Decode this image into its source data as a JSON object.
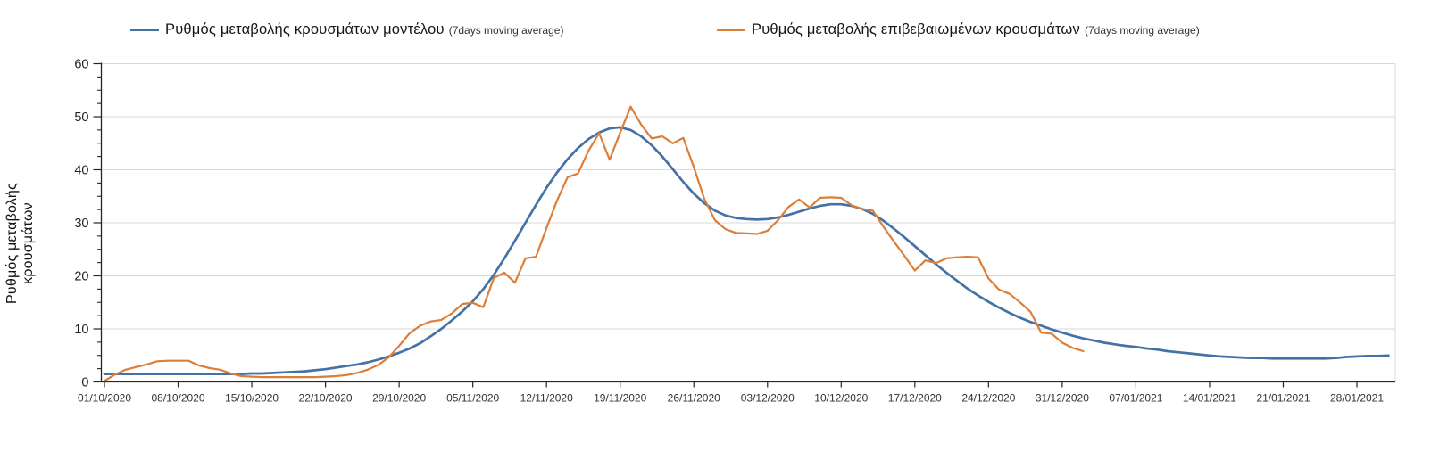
{
  "chart_data": {
    "type": "line",
    "title": "",
    "xlabel": "",
    "ylabel": "Ρυθμός μεταβολής κρουσμάτων",
    "ylim": [
      0,
      60
    ],
    "y_major_ticks": [
      0,
      10,
      20,
      30,
      40,
      50,
      60
    ],
    "y_minor_step": 2.5,
    "grid": "horizontal-major-light-gray",
    "legend_position": "top",
    "x_tick_labels": [
      "01/10/2020",
      "08/10/2020",
      "15/10/2020",
      "22/10/2020",
      "29/10/2020",
      "05/11/2020",
      "12/11/2020",
      "19/11/2020",
      "26/11/2020",
      "03/12/2020",
      "10/12/2020",
      "17/12/2020",
      "24/12/2020",
      "31/12/2020",
      "07/01/2021",
      "14/01/2021",
      "21/01/2021",
      "28/01/2021"
    ],
    "x_tick_day_index": [
      0,
      7,
      14,
      21,
      28,
      35,
      42,
      49,
      56,
      63,
      70,
      77,
      84,
      91,
      98,
      105,
      112,
      119
    ],
    "x_unit": "days since 01/10/2020",
    "series": [
      {
        "name": "Ρυθμός μεταβολής κρουσμάτων μοντέλου",
        "name_suffix": "(7days moving average)",
        "color": "#4472a6",
        "line_width": 2.7,
        "start_day": 0,
        "values": [
          1.5,
          1.5,
          1.5,
          1.5,
          1.5,
          1.5,
          1.5,
          1.5,
          1.5,
          1.5,
          1.5,
          1.5,
          1.5,
          1.5,
          1.6,
          1.6,
          1.7,
          1.8,
          1.9,
          2.0,
          2.2,
          2.4,
          2.7,
          3.0,
          3.3,
          3.7,
          4.2,
          4.8,
          5.5,
          6.3,
          7.3,
          8.6,
          10.0,
          11.6,
          13.3,
          15.2,
          17.5,
          20.2,
          23.3,
          26.6,
          30.0,
          33.4,
          36.6,
          39.5,
          42.0,
          44.1,
          45.8,
          47.0,
          47.8,
          48.0,
          47.5,
          46.3,
          44.6,
          42.5,
          40.1,
          37.7,
          35.5,
          33.7,
          32.3,
          31.4,
          30.9,
          30.7,
          30.6,
          30.7,
          31.0,
          31.5,
          32.1,
          32.7,
          33.2,
          33.5,
          33.5,
          33.2,
          32.6,
          31.7,
          30.4,
          28.9,
          27.3,
          25.6,
          23.9,
          22.2,
          20.6,
          19.1,
          17.6,
          16.3,
          15.1,
          14.0,
          13.0,
          12.1,
          11.3,
          10.6,
          9.9,
          9.3,
          8.7,
          8.2,
          7.8,
          7.4,
          7.1,
          6.8,
          6.6,
          6.3,
          6.1,
          5.8,
          5.6,
          5.4,
          5.2,
          5.0,
          4.8,
          4.7,
          4.6,
          4.5,
          4.5,
          4.4,
          4.4,
          4.4,
          4.4,
          4.4,
          4.4,
          4.5,
          4.7,
          4.8,
          4.9,
          4.9,
          5.0
        ]
      },
      {
        "name": "Ρυθμός μεταβολής επιβεβαιωμένων κρουσμάτων",
        "name_suffix": "(7days moving average)",
        "color": "#dd7e38",
        "line_width": 2.2,
        "start_day": 0,
        "values": [
          0.2,
          1.4,
          2.3,
          2.8,
          3.3,
          3.9,
          4.0,
          4.0,
          4.0,
          3.1,
          2.6,
          2.3,
          1.6,
          1.1,
          1.0,
          0.9,
          0.9,
          0.9,
          0.9,
          0.9,
          0.9,
          1.0,
          1.1,
          1.3,
          1.7,
          2.3,
          3.2,
          4.6,
          6.8,
          9.2,
          10.6,
          11.4,
          11.7,
          12.9,
          14.7,
          14.9,
          14.1,
          19.6,
          20.6,
          18.7,
          23.3,
          23.6,
          29.0,
          34.2,
          38.6,
          39.3,
          43.6,
          46.9,
          41.9,
          47.0,
          51.9,
          48.5,
          45.9,
          46.3,
          45.0,
          46.0,
          40.5,
          34.5,
          30.5,
          28.8,
          28.1,
          28.0,
          27.9,
          28.5,
          30.5,
          33.0,
          34.4,
          32.9,
          34.7,
          34.8,
          34.7,
          33.3,
          32.6,
          32.3,
          29.3,
          26.5,
          23.8,
          21.0,
          22.9,
          22.4,
          23.3,
          23.5,
          23.6,
          23.5,
          19.5,
          17.4,
          16.6,
          15.0,
          13.2,
          9.3,
          9.1,
          7.4,
          6.4,
          5.8
        ]
      }
    ]
  },
  "style": {
    "axis_color": "#262626",
    "gridline_color": "#d9d9d9",
    "tick_label_color": "#333333",
    "y_label_color": "#222222"
  }
}
